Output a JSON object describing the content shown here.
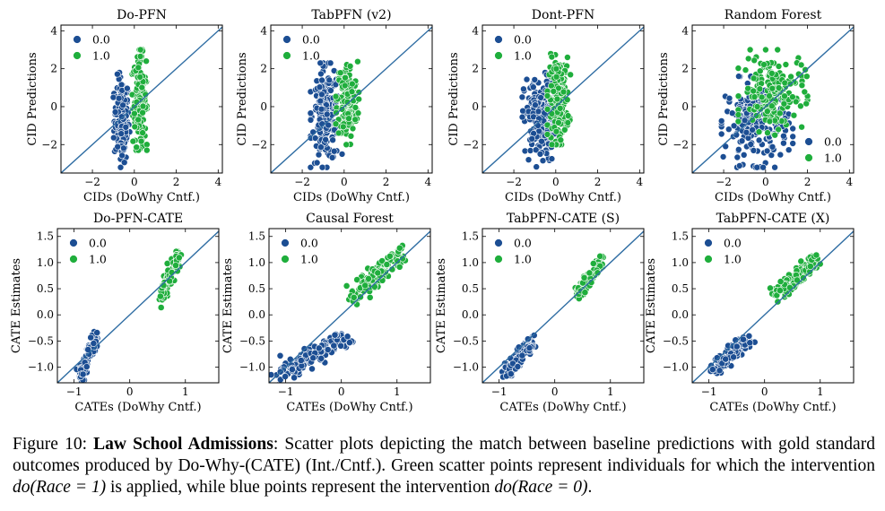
{
  "colors": {
    "blue": "#1c4e93",
    "green": "#1fae3c",
    "line": "#2f6da3"
  },
  "chart_data": [
    {
      "type": "scatter",
      "title": "Do-PFN",
      "xlabel": "CIDs (DoWhy Cntf.)",
      "ylabel": "CID Predictions",
      "xlim": [
        -3.5,
        4.2
      ],
      "ylim": [
        -3.5,
        4.3
      ],
      "xticks": [
        -2,
        0,
        2,
        4
      ],
      "yticks": [
        -2,
        0,
        2,
        4
      ],
      "legend": "top-left",
      "identity_line": true,
      "series": [
        {
          "name": "0.0",
          "x_range": [
            -1.0,
            -0.2
          ],
          "y_range": [
            -3.2,
            1.8
          ],
          "n": 170
        },
        {
          "name": "1.0",
          "x_range": [
            -0.1,
            0.6
          ],
          "y_range": [
            -2.3,
            3.0
          ],
          "n": 170
        }
      ]
    },
    {
      "type": "scatter",
      "title": "TabPFN (v2)",
      "xlabel": "CIDs (DoWhy Cntf.)",
      "ylabel": "CID Predictions",
      "xlim": [
        -3.5,
        4.2
      ],
      "ylim": [
        -3.5,
        4.3
      ],
      "xticks": [
        -2,
        0,
        2,
        4
      ],
      "yticks": [
        -2,
        0,
        2,
        4
      ],
      "legend": "top-left",
      "identity_line": true,
      "series": [
        {
          "name": "0.0",
          "x_range": [
            -1.6,
            -0.1
          ],
          "y_range": [
            -3.2,
            2.3
          ],
          "n": 200
        },
        {
          "name": "1.0",
          "x_range": [
            -0.4,
            0.7
          ],
          "y_range": [
            -2.0,
            2.6
          ],
          "n": 170
        }
      ]
    },
    {
      "type": "scatter",
      "title": "Dont-PFN",
      "xlabel": "CIDs (DoWhy Cntf.)",
      "ylabel": "CID Predictions",
      "xlim": [
        -3.5,
        4.2
      ],
      "ylim": [
        -3.5,
        4.3
      ],
      "xticks": [
        -2,
        0,
        2,
        4
      ],
      "yticks": [
        -2,
        0,
        2,
        4
      ],
      "legend": "top-left",
      "identity_line": true,
      "series": [
        {
          "name": "0.0",
          "x_range": [
            -1.6,
            0.1
          ],
          "y_range": [
            -3.2,
            1.8
          ],
          "n": 200
        },
        {
          "name": "1.0",
          "x_range": [
            -0.4,
            0.7
          ],
          "y_range": [
            -2.0,
            2.8
          ],
          "n": 170
        }
      ]
    },
    {
      "type": "scatter",
      "title": "Random Forest",
      "xlabel": "CIDs (DoWhy Cntf.)",
      "ylabel": "CID Predictions",
      "xlim": [
        -3.5,
        4.2
      ],
      "ylim": [
        -3.5,
        4.3
      ],
      "xticks": [
        -2,
        0,
        2,
        4
      ],
      "yticks": [
        -2,
        0,
        2,
        4
      ],
      "legend": "bottom-right",
      "identity_line": true,
      "series": [
        {
          "name": "0.0",
          "x_range": [
            -2.1,
            1.3
          ],
          "y_range": [
            -3.2,
            1.6
          ],
          "n": 220
        },
        {
          "name": "1.0",
          "x_range": [
            -1.3,
            2.0
          ],
          "y_range": [
            -1.5,
            3.0
          ],
          "n": 180
        }
      ]
    },
    {
      "type": "scatter",
      "title": "Do-PFN-CATE",
      "xlabel": "CATEs (DoWhy Cntf.)",
      "ylabel": "CATE Estimates",
      "xlim": [
        -1.3,
        1.6
      ],
      "ylim": [
        -1.3,
        1.65
      ],
      "xticks": [
        -1,
        0,
        1
      ],
      "yticks": [
        -1.0,
        -0.5,
        0.0,
        0.5,
        1.0,
        1.5
      ],
      "legend": "top-left",
      "identity_line": true,
      "series": [
        {
          "name": "0.0",
          "x_range": [
            -0.9,
            -0.6
          ],
          "y_range": [
            -1.2,
            -0.42
          ],
          "n": 110
        },
        {
          "name": "1.0",
          "x_range": [
            0.55,
            0.9
          ],
          "y_range": [
            0.35,
            1.2
          ],
          "n": 100
        }
      ]
    },
    {
      "type": "scatter",
      "title": "Causal Forest",
      "xlabel": "CATEs (DoWhy Cntf.)",
      "ylabel": "CATE Estimates",
      "xlim": [
        -1.3,
        1.6
      ],
      "ylim": [
        -1.3,
        1.65
      ],
      "xticks": [
        -1,
        0,
        1
      ],
      "yticks": [
        -1.0,
        -0.5,
        0.0,
        0.5,
        1.0,
        1.5
      ],
      "legend": "top-left",
      "identity_line": true,
      "series": [
        {
          "name": "0.0",
          "x_range": [
            -1.1,
            0.1
          ],
          "y_range": [
            -1.15,
            -0.4
          ],
          "n": 150
        },
        {
          "name": "1.0",
          "x_range": [
            0.2,
            1.1
          ],
          "y_range": [
            0.35,
            1.2
          ],
          "n": 130
        }
      ]
    },
    {
      "type": "scatter",
      "title": "TabPFN-CATE (S)",
      "xlabel": "CATEs (DoWhy Cntf.)",
      "ylabel": "CATE Estimates",
      "xlim": [
        -1.3,
        1.6
      ],
      "ylim": [
        -1.3,
        1.65
      ],
      "xticks": [
        -1,
        0,
        1
      ],
      "yticks": [
        -1.0,
        -0.5,
        0.0,
        0.5,
        1.0,
        1.5
      ],
      "legend": "top-left",
      "identity_line": true,
      "series": [
        {
          "name": "0.0",
          "x_range": [
            -0.9,
            -0.4
          ],
          "y_range": [
            -1.2,
            -0.45
          ],
          "n": 110
        },
        {
          "name": "1.0",
          "x_range": [
            0.4,
            0.85
          ],
          "y_range": [
            0.4,
            1.0
          ],
          "n": 110
        }
      ]
    },
    {
      "type": "scatter",
      "title": "TabPFN-CATE (X)",
      "xlabel": "CATEs (DoWhy Cntf.)",
      "ylabel": "CATE Estimates",
      "xlim": [
        -1.3,
        1.6
      ],
      "ylim": [
        -1.3,
        1.65
      ],
      "xticks": [
        -1,
        0,
        1
      ],
      "yticks": [
        -1.0,
        -0.5,
        0.0,
        0.5,
        1.0,
        1.5
      ],
      "legend": "top-left",
      "identity_line": true,
      "series": [
        {
          "name": "0.0",
          "x_range": [
            -0.95,
            -0.3
          ],
          "y_range": [
            -1.1,
            -0.45
          ],
          "n": 120
        },
        {
          "name": "1.0",
          "x_range": [
            0.2,
            0.95
          ],
          "y_range": [
            0.4,
            1.05
          ],
          "n": 120
        }
      ]
    }
  ],
  "caption": {
    "label": "Figure 10: ",
    "title": "Law School Admissions",
    "text1": ": Scatter plots depicting the match between baseline predictions with gold standard outcomes produced by Do-Why-(CATE) (Int./Cntf.). Green scatter points represent individuals for which the intervention ",
    "math1": "do(Race = 1)",
    "text2": " is applied, while blue points represent the intervention ",
    "math2": "do(Race = 0)",
    "text3": "."
  }
}
